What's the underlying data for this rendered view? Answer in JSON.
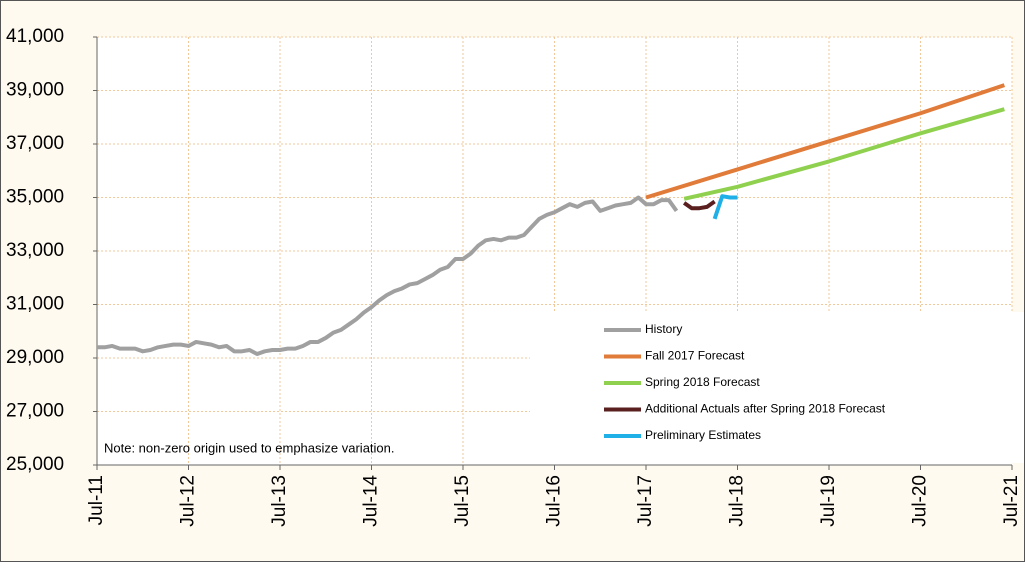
{
  "chart_data": {
    "type": "line",
    "annotation": "Note: non-zero origin used to emphasize variation.",
    "legend": "lower right",
    "grid": true,
    "xlim": [
      "2011-07",
      "2021-07"
    ],
    "xticks": [
      {
        "value": "2011-07",
        "label": "Jul-11"
      },
      {
        "value": "2012-07",
        "label": "Jul-12"
      },
      {
        "value": "2013-07",
        "label": "Jul-13"
      },
      {
        "value": "2014-07",
        "label": "Jul-14"
      },
      {
        "value": "2015-07",
        "label": "Jul-15"
      },
      {
        "value": "2016-07",
        "label": "Jul-16"
      },
      {
        "value": "2017-07",
        "label": "Jul-17"
      },
      {
        "value": "2018-07",
        "label": "Jul-18"
      },
      {
        "value": "2019-07",
        "label": "Jul-19"
      },
      {
        "value": "2020-07",
        "label": "Jul-20"
      },
      {
        "value": "2021-07",
        "label": "Jul-21"
      }
    ],
    "ylim": [
      25000,
      41000
    ],
    "yticks": [
      {
        "value": 25000,
        "label": "25,000"
      },
      {
        "value": 27000,
        "label": "27,000"
      },
      {
        "value": 29000,
        "label": "29,000"
      },
      {
        "value": 31000,
        "label": "31,000"
      },
      {
        "value": 33000,
        "label": "33,000"
      },
      {
        "value": 35000,
        "label": "35,000"
      },
      {
        "value": 37000,
        "label": "37,000"
      },
      {
        "value": 39000,
        "label": "39,000"
      },
      {
        "value": 41000,
        "label": "41,000"
      }
    ],
    "series": [
      {
        "name": "History",
        "color": "#a0a0a0",
        "x": [
          "2011-07",
          "2011-08",
          "2011-09",
          "2011-10",
          "2011-11",
          "2011-12",
          "2012-01",
          "2012-02",
          "2012-03",
          "2012-04",
          "2012-05",
          "2012-06",
          "2012-07",
          "2012-08",
          "2012-09",
          "2012-10",
          "2012-11",
          "2012-12",
          "2013-01",
          "2013-02",
          "2013-03",
          "2013-04",
          "2013-05",
          "2013-06",
          "2013-07",
          "2013-08",
          "2013-09",
          "2013-10",
          "2013-11",
          "2013-12",
          "2014-01",
          "2014-02",
          "2014-03",
          "2014-04",
          "2014-05",
          "2014-06",
          "2014-07",
          "2014-08",
          "2014-09",
          "2014-10",
          "2014-11",
          "2014-12",
          "2015-01",
          "2015-02",
          "2015-03",
          "2015-04",
          "2015-05",
          "2015-06",
          "2015-07",
          "2015-08",
          "2015-09",
          "2015-10",
          "2015-11",
          "2015-12",
          "2016-01",
          "2016-02",
          "2016-03",
          "2016-04",
          "2016-05",
          "2016-06",
          "2016-07",
          "2016-08",
          "2016-09",
          "2016-10",
          "2016-11",
          "2016-12",
          "2017-01",
          "2017-02",
          "2017-03",
          "2017-04",
          "2017-05",
          "2017-06",
          "2017-07",
          "2017-08",
          "2017-09",
          "2017-10",
          "2017-11"
        ],
        "values": [
          29400,
          29400,
          29450,
          29350,
          29350,
          29350,
          29250,
          29300,
          29400,
          29450,
          29500,
          29500,
          29450,
          29600,
          29550,
          29500,
          29400,
          29450,
          29250,
          29250,
          29300,
          29150,
          29250,
          29300,
          29300,
          29350,
          29350,
          29450,
          29600,
          29600,
          29750,
          29950,
          30050,
          30250,
          30450,
          30700,
          30900,
          31150,
          31350,
          31500,
          31600,
          31750,
          31800,
          31950,
          32100,
          32300,
          32400,
          32700,
          32700,
          32900,
          33200,
          33400,
          33450,
          33400,
          33500,
          33500,
          33600,
          33900,
          34200,
          34350,
          34450,
          34600,
          34750,
          34650,
          34800,
          34850,
          34500,
          34600,
          34700,
          34750,
          34800,
          35000,
          34750,
          34750,
          34900,
          34900,
          34500
        ]
      },
      {
        "name": "Fall 2017 Forecast",
        "color": "#e07b39",
        "x": [
          "2017-07",
          "2018-07",
          "2019-07",
          "2020-07",
          "2021-06"
        ],
        "values": [
          35000,
          36050,
          37100,
          38150,
          39200
        ]
      },
      {
        "name": "Spring 2018 Forecast",
        "color": "#8fd14f",
        "x": [
          "2017-12",
          "2018-07",
          "2019-07",
          "2020-07",
          "2021-06"
        ],
        "values": [
          34950,
          35400,
          36350,
          37400,
          38300
        ]
      },
      {
        "name": "Additional Actuals after Spring 2018 Forecast",
        "color": "#5a1f1f",
        "x": [
          "2017-12",
          "2018-01",
          "2018-02",
          "2018-03",
          "2018-04"
        ],
        "values": [
          34800,
          34600,
          34600,
          34650,
          34850
        ]
      },
      {
        "name": "Preliminary Estimates",
        "color": "#1fb0e8",
        "x": [
          "2018-04",
          "2018-05",
          "2018-06",
          "2018-07"
        ],
        "values": [
          34200,
          35050,
          35000,
          35000
        ]
      }
    ]
  }
}
